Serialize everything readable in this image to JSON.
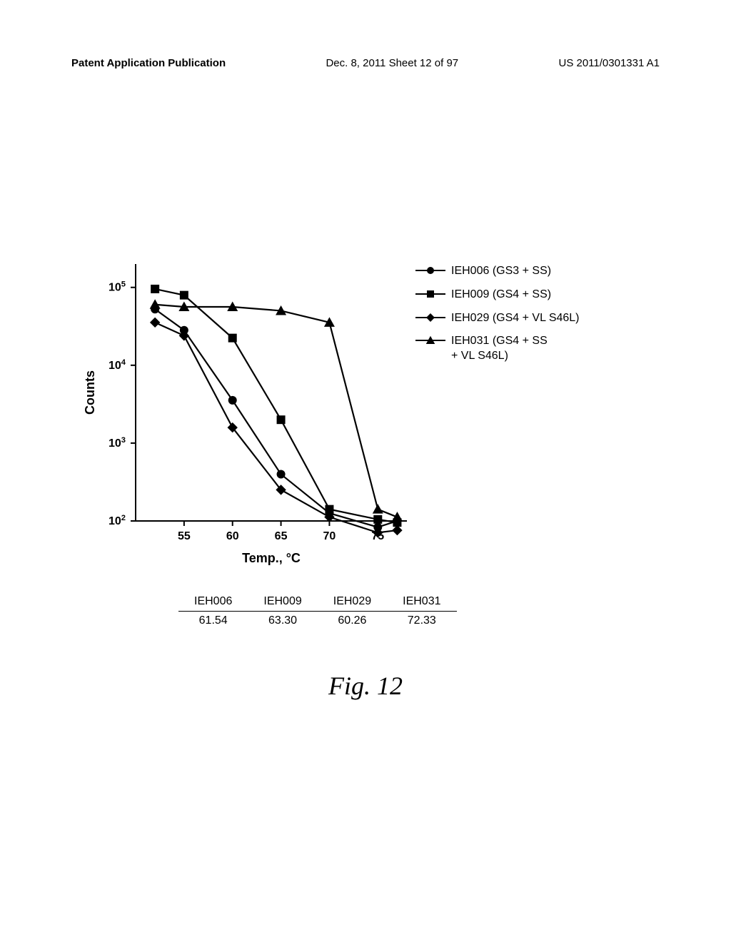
{
  "header": {
    "left": "Patent Application Publication",
    "center": "Dec. 8, 2011   Sheet 12 of 97",
    "right": "US 2011/0301331 A1"
  },
  "chart": {
    "type": "line",
    "xlabel": "Temp., °C",
    "ylabel": "Counts",
    "xlabel_fontsize": 18,
    "ylabel_fontsize": 18,
    "tick_fontsize": 16,
    "background": "#ffffff",
    "axis_color": "#000000",
    "line_width": 2.2,
    "marker_size": 6,
    "xlim": [
      50,
      78
    ],
    "x_ticks": [
      55,
      60,
      65,
      70,
      75
    ],
    "y_log": true,
    "ylim_log": [
      2,
      5.3
    ],
    "y_ticks_exp": [
      2,
      3,
      4,
      5
    ],
    "series": [
      {
        "name": "IEH006 (GS3 + SS)",
        "marker": "circle",
        "marker_fill": "#000000",
        "line_color": "#000000",
        "points": [
          {
            "x": 52,
            "y": 4.72
          },
          {
            "x": 55,
            "y": 4.45
          },
          {
            "x": 60,
            "y": 3.55
          },
          {
            "x": 65,
            "y": 2.6
          },
          {
            "x": 70,
            "y": 2.1
          },
          {
            "x": 75,
            "y": 1.92
          },
          {
            "x": 77,
            "y": 2.0
          }
        ]
      },
      {
        "name": "IEH009 (GS4 + SS)",
        "marker": "square",
        "marker_fill": "#000000",
        "line_color": "#000000",
        "points": [
          {
            "x": 52,
            "y": 4.98
          },
          {
            "x": 55,
            "y": 4.9
          },
          {
            "x": 60,
            "y": 4.35
          },
          {
            "x": 65,
            "y": 3.3
          },
          {
            "x": 70,
            "y": 2.15
          },
          {
            "x": 75,
            "y": 2.02
          },
          {
            "x": 77,
            "y": 1.98
          }
        ]
      },
      {
        "name": "IEH029 (GS4 + VL S46L)",
        "marker": "diamond",
        "marker_fill": "#000000",
        "line_color": "#000000",
        "points": [
          {
            "x": 52,
            "y": 4.55
          },
          {
            "x": 55,
            "y": 4.38
          },
          {
            "x": 60,
            "y": 3.2
          },
          {
            "x": 65,
            "y": 2.4
          },
          {
            "x": 70,
            "y": 2.05
          },
          {
            "x": 75,
            "y": 1.85
          },
          {
            "x": 77,
            "y": 1.88
          }
        ]
      },
      {
        "name": "IEH031 (GS4 + SS + VL S46L)",
        "marker": "triangle",
        "marker_fill": "#000000",
        "line_color": "#000000",
        "label_lines": [
          "IEH031 (GS4 + SS",
          "            + VL S46L)"
        ],
        "points": [
          {
            "x": 52,
            "y": 4.78
          },
          {
            "x": 55,
            "y": 4.75
          },
          {
            "x": 60,
            "y": 4.75
          },
          {
            "x": 65,
            "y": 4.7
          },
          {
            "x": 70,
            "y": 4.55
          },
          {
            "x": 75,
            "y": 2.15
          },
          {
            "x": 77,
            "y": 2.05
          }
        ]
      }
    ],
    "legend": {
      "order": [
        0,
        1,
        2,
        3
      ]
    }
  },
  "table": {
    "columns": [
      "IEH006",
      "IEH009",
      "IEH029",
      "IEH031"
    ],
    "rows": [
      [
        "61.54",
        "63.30",
        "60.26",
        "72.33"
      ]
    ]
  },
  "figure_caption": "Fig. 12"
}
